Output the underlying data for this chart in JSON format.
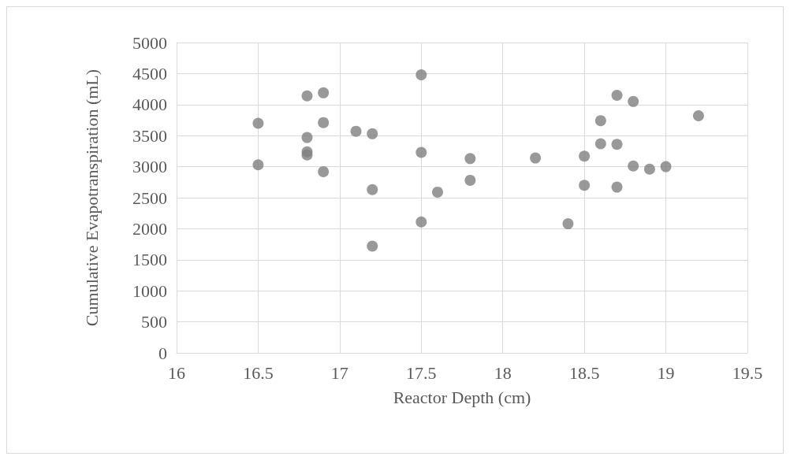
{
  "chart_data": {
    "type": "scatter",
    "xlabel": "Reactor Depth (cm)",
    "ylabel": "Cumulative Evapotranspiration (mL)",
    "x": [
      16.5,
      16.5,
      16.8,
      16.8,
      16.8,
      16.8,
      16.9,
      16.9,
      16.9,
      17.1,
      17.2,
      17.2,
      17.2,
      17.5,
      17.5,
      17.5,
      17.6,
      17.8,
      17.8,
      18.2,
      18.4,
      18.5,
      18.5,
      18.6,
      18.6,
      18.7,
      18.7,
      18.7,
      18.8,
      18.8,
      18.9,
      19.0,
      19.2
    ],
    "values": [
      3700,
      3030,
      4140,
      3470,
      3240,
      3190,
      4190,
      3710,
      2920,
      3570,
      3530,
      2630,
      1720,
      4480,
      3230,
      2110,
      2590,
      3130,
      2780,
      3140,
      2080,
      3170,
      2700,
      3740,
      3370,
      4150,
      3360,
      2670,
      4050,
      3010,
      2960,
      3000,
      3820
    ],
    "color": "#808080",
    "marker": "circle",
    "xlim": [
      16,
      19.5
    ],
    "xticks": [
      16,
      16.5,
      17,
      17.5,
      18,
      18.5,
      19,
      19.5
    ],
    "ylim": [
      0,
      5000
    ],
    "yticks": [
      0,
      500,
      1000,
      1500,
      2000,
      2500,
      3000,
      3500,
      4000,
      4500,
      5000
    ],
    "grid": true
  }
}
